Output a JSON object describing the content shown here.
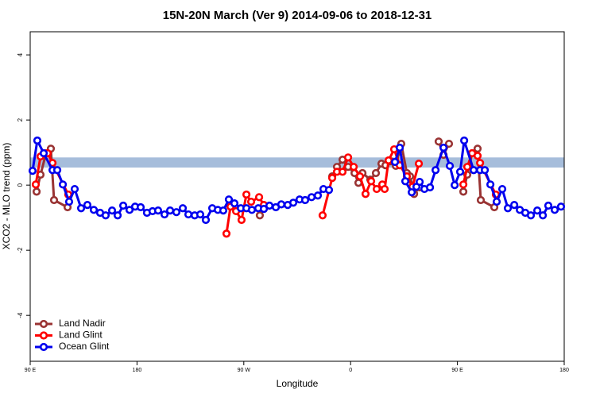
{
  "chart_data": {
    "type": "line",
    "title": "15N-20N March (Ver 9)   2014-09-06 to 2018-12-31",
    "x_label": "Longitude",
    "y_label": "XCO2 - MLO trend (ppm)",
    "xlim": [
      90,
      540
    ],
    "ylim": [
      -5.41,
      4.71
    ],
    "xticks": [
      {
        "value": 90,
        "label": "90 E"
      },
      180,
      {
        "value": 270,
        "label": "90 W"
      },
      {
        "value": 360,
        "label": "0"
      },
      {
        "value": 450,
        "label": "90 E"
      },
      {
        "value": 540,
        "label": "180"
      }
    ],
    "yticks": [
      -4,
      -2,
      0,
      2,
      4
    ],
    "band": [
      0.54,
      0.85
    ],
    "band_color": "#a6bddb",
    "legend": "bottom-left",
    "series": [
      {
        "name": "Land Nadir",
        "color": "#993333",
        "x": [
          95.4,
          98.7,
          103.4,
          107.4,
          110.1,
          121.5,
          null,
          283.5,
          null,
          344.5,
          348.5,
          353.2,
          357.9,
          363.3,
          366.6,
          370.0,
          376.6,
          381.3,
          386.0,
          389.4,
          394.0,
          398.1,
          402.7,
          407.4,
          410.1,
          413.5,
          418.2,
          null,
          434.2,
          438.3,
          442.9,
          null,
          455.0,
          458.3,
          462.4,
          467.0,
          469.7,
          481.1
        ],
        "values": [
          -0.2,
          0.32,
          0.98,
          1.12,
          -0.46,
          -0.68,
          null,
          -0.93,
          null,
          0.27,
          0.56,
          0.78,
          0.56,
          0.37,
          0.07,
          0.37,
          0.17,
          0.37,
          0.66,
          0.61,
          0.73,
          0.59,
          1.27,
          0.37,
          0.27,
          -0.27,
          -0.07,
          null,
          1.34,
          0.93,
          1.27,
          null,
          -0.2,
          0.32,
          0.98,
          1.12,
          -0.46,
          -0.68
        ]
      },
      {
        "name": "Land Glint",
        "color": "#ff0000",
        "x": [
          94.7,
          98.7,
          104.7,
          108.8,
          122.1,
          null,
          255.4,
          258.8,
          263.5,
          268.1,
          272.2,
          276.2,
          282.9,
          286.9,
          null,
          336.4,
          344.5,
          348.5,
          353.2,
          357.9,
          362.6,
          367.9,
          372.6,
          377.3,
          382.0,
          386.7,
          388.7,
          392.0,
          396.7,
          401.4,
          407.4,
          412.1,
          417.5,
          null,
          455.0,
          458.3,
          462.4,
          467.0,
          469.1,
          482.4
        ],
        "values": [
          0.02,
          0.88,
          0.98,
          0.68,
          -0.29,
          null,
          -1.49,
          -0.66,
          -0.8,
          -1.07,
          -0.29,
          -0.51,
          -0.37,
          -0.61,
          null,
          -0.93,
          0.22,
          0.41,
          0.41,
          0.85,
          0.56,
          0.27,
          -0.27,
          0.12,
          -0.12,
          0.02,
          -0.12,
          0.76,
          1.1,
          0.61,
          0.27,
          -0.05,
          0.66,
          null,
          0.02,
          0.56,
          0.98,
          0.9,
          0.68,
          -0.29
        ]
      },
      {
        "name": "Ocean Glint",
        "color": "#0000ee",
        "x": [
          92.0,
          96.0,
          101.4,
          108.8,
          112.8,
          117.5,
          122.8,
          127.5,
          132.9,
          138.2,
          143.6,
          148.9,
          153.6,
          159.0,
          163.7,
          168.4,
          173.7,
          178.4,
          183.1,
          188.4,
          193.1,
          197.8,
          203.2,
          207.9,
          213.2,
          218.6,
          223.3,
          228.6,
          233.3,
          238.0,
          243.4,
          248.1,
          252.7,
          257.4,
          262.1,
          267.5,
          272.2,
          276.8,
          282.2,
          286.9,
          291.6,
          297.0,
          301.6,
          307.0,
          311.7,
          317.0,
          321.7,
          327.1,
          332.4,
          337.1,
          341.8,
          null,
          397.4,
          401.4,
          406.1,
          411.5,
          415.5,
          418.2,
          422.2,
          426.9,
          431.6,
          438.3,
          443.6,
          447.7,
          452.3,
          455.7,
          463.7,
          469.1,
          473.1,
          477.8,
          483.1,
          487.8,
          492.5,
          497.9,
          502.6,
          507.2,
          511.9,
          517.3,
          522.0,
          526.6,
          532.0,
          537.3
        ],
        "values": [
          0.44,
          1.37,
          0.98,
          0.46,
          0.46,
          0.02,
          -0.51,
          -0.12,
          -0.71,
          -0.61,
          -0.76,
          -0.85,
          -0.93,
          -0.78,
          -0.93,
          -0.63,
          -0.76,
          -0.66,
          -0.68,
          -0.85,
          -0.8,
          -0.78,
          -0.9,
          -0.78,
          -0.83,
          -0.71,
          -0.9,
          -0.93,
          -0.9,
          -1.07,
          -0.71,
          -0.76,
          -0.78,
          -0.44,
          -0.56,
          -0.71,
          -0.71,
          -0.76,
          -0.71,
          -0.73,
          -0.63,
          -0.68,
          -0.59,
          -0.61,
          -0.54,
          -0.44,
          -0.46,
          -0.37,
          -0.32,
          -0.12,
          -0.15,
          null,
          0.71,
          1.15,
          0.12,
          -0.22,
          -0.05,
          0.1,
          -0.12,
          -0.07,
          0.46,
          1.15,
          0.59,
          0.0,
          0.41,
          1.37,
          0.46,
          0.46,
          0.46,
          0.02,
          -0.51,
          -0.12,
          -0.71,
          -0.61,
          -0.76,
          -0.85,
          -0.93,
          -0.78,
          -0.93,
          -0.63,
          -0.76,
          -0.66
        ]
      }
    ]
  }
}
